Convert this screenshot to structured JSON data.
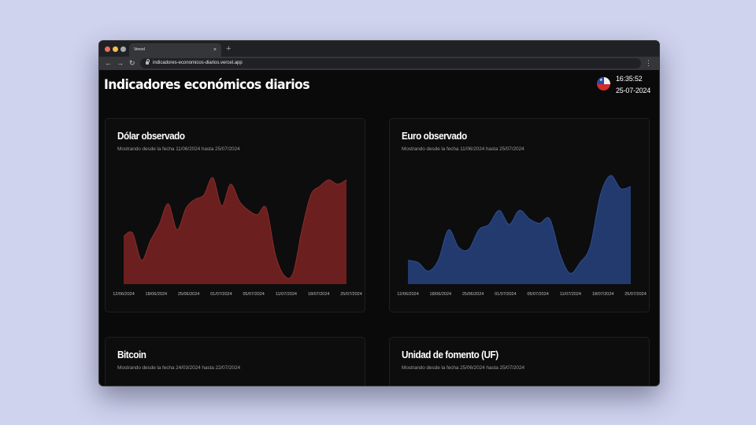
{
  "browser": {
    "tab_title": "Vercel",
    "tab_close": "×",
    "new_tab": "+",
    "url": "indicadores-economicos-diarios.vercel.app",
    "nav": {
      "back": "←",
      "forward": "→",
      "reload": "↻",
      "menu": "⋮"
    }
  },
  "page": {
    "title": "Indicadores económicos diarios",
    "clock": {
      "time": "16:35:52",
      "date": "25-07-2024"
    },
    "flag_star": "★"
  },
  "cards": [
    {
      "title": "Dólar observado",
      "subtitle": "Mostrando desde la fecha 11/06/2024 hasta 25/07/2024",
      "color": "#6b1f1f",
      "stroke": "#8a2c2c"
    },
    {
      "title": "Euro observado",
      "subtitle": "Mostrando desde la fecha 11/06/2024 hasta 25/07/2024",
      "color": "#223a6e",
      "stroke": "#2e4d8f"
    },
    {
      "title": "Bitcoin",
      "subtitle": "Mostrando desde la fecha 24/03/2024 hasta 22/07/2024"
    },
    {
      "title": "Unidad de fomento (UF)",
      "subtitle": "Mostrando desde la fecha 25/06/2024 hasta 25/07/2024"
    }
  ],
  "chart_data": [
    {
      "type": "area",
      "title": "Dólar observado",
      "x_ticks": [
        "12/06/2024",
        "18/06/2024",
        "25/06/2024",
        "01/07/2024",
        "05/07/2024",
        "11/07/2024",
        "18/07/2024",
        "25/07/2024"
      ],
      "values": [
        0.44,
        0.47,
        0.22,
        0.4,
        0.55,
        0.74,
        0.5,
        0.7,
        0.78,
        0.82,
        0.98,
        0.72,
        0.92,
        0.76,
        0.68,
        0.64,
        0.7,
        0.28,
        0.08,
        0.1,
        0.5,
        0.82,
        0.9,
        0.96,
        0.92,
        0.96
      ],
      "ylim": [
        0,
        1
      ]
    },
    {
      "type": "area",
      "title": "Euro observado",
      "x_ticks": [
        "12/06/2024",
        "18/06/2024",
        "25/06/2024",
        "01/07/2024",
        "05/07/2024",
        "11/07/2024",
        "18/07/2024",
        "25/07/2024"
      ],
      "values": [
        0.22,
        0.2,
        0.12,
        0.22,
        0.5,
        0.34,
        0.32,
        0.5,
        0.55,
        0.68,
        0.55,
        0.68,
        0.6,
        0.56,
        0.6,
        0.28,
        0.1,
        0.2,
        0.35,
        0.82,
        1.0,
        0.88,
        0.9
      ],
      "ylim": [
        0,
        1
      ]
    }
  ]
}
